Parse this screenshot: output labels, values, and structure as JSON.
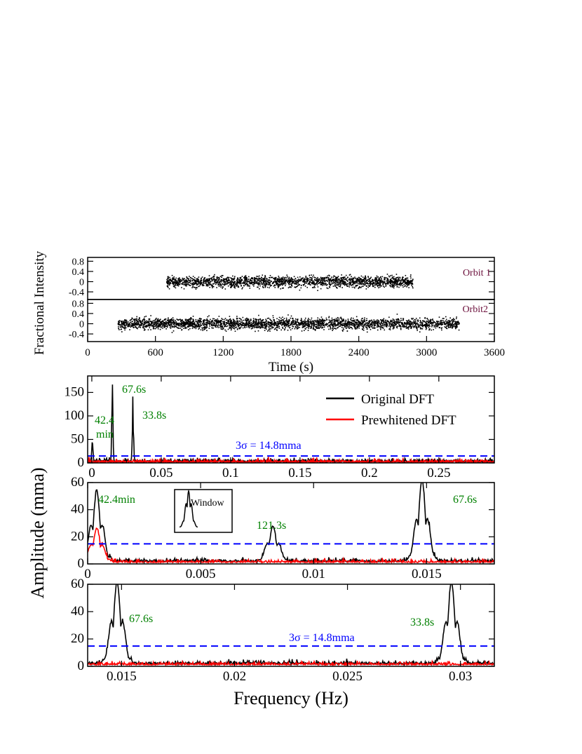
{
  "figure": {
    "ylabel_top": "Fractional Intensity",
    "xlabel_top": "Time (s)",
    "ylabel_bottom": "Amplitude (mma)",
    "xlabel_bottom": "Frequency (Hz)"
  },
  "colors": {
    "lightcurve": "#000000",
    "original": "#000000",
    "prewhitened": "#ff0000",
    "threshold": "#0000ff",
    "period_labels": "#008000",
    "orbit_labels": "#6b0f3b"
  },
  "chart_data": [
    {
      "type": "scatter",
      "panel": "orbit1",
      "label": "Orbit 1",
      "x_range": [
        700,
        2880
      ],
      "xlim": [
        0,
        3600
      ],
      "ylim": [
        -0.7,
        0.95
      ],
      "yticks": [
        "0.8",
        "0.4",
        "0",
        "-0.4"
      ],
      "ytick_values": [
        0.8,
        0.4,
        0,
        -0.4
      ],
      "scatter_sigma": 0.22
    },
    {
      "type": "scatter",
      "panel": "orbit2",
      "label": "Orbit2",
      "x_range": [
        270,
        3290
      ],
      "xlim": [
        0,
        3600
      ],
      "ylim": [
        -0.7,
        0.95
      ],
      "yticks": [
        "0.8",
        "0.4",
        "0",
        "-0.4"
      ],
      "ytick_values": [
        0.8,
        0.4,
        0,
        -0.4
      ],
      "xticks": [
        "0",
        "600",
        "1200",
        "1800",
        "2400",
        "3000",
        "3600"
      ],
      "xtick_values": [
        0,
        600,
        1200,
        1800,
        2400,
        3000,
        3600
      ],
      "scatter_sigma": 0.22
    },
    {
      "type": "line",
      "panel": "dft-full",
      "xlim": [
        -0.003,
        0.29
      ],
      "ylim": [
        0,
        185
      ],
      "xticks": [
        "0",
        "0.05",
        "0.1",
        "0.15",
        "0.2",
        "0.25"
      ],
      "xtick_values": [
        0,
        0.05,
        0.1,
        0.15,
        0.2,
        0.25
      ],
      "yticks": [
        "0",
        "50",
        "100",
        "150"
      ],
      "ytick_values": [
        0,
        50,
        100,
        150
      ],
      "series": [
        {
          "name": "Original DFT",
          "peaks": [
            [
              0.0004,
              50
            ],
            [
              0.0148,
              180
            ],
            [
              0.0296,
              138
            ]
          ]
        },
        {
          "name": "Prewhitened DFT",
          "peaks": []
        }
      ],
      "threshold": {
        "value": 14.8,
        "label": "3σ = 14.8mma"
      },
      "annotations": [
        {
          "text": "42.4",
          "x": 0.0004,
          "y": 50
        },
        {
          "text": "min",
          "x": 0.0004,
          "y": 50
        },
        {
          "text": "67.6s",
          "x": 0.0148,
          "y": 180
        },
        {
          "text": "33.8s",
          "x": 0.0296,
          "y": 138
        }
      ],
      "legend": {
        "position": "top-right"
      }
    },
    {
      "type": "line",
      "panel": "dft-low",
      "xlim": [
        0,
        0.018
      ],
      "ylim": [
        0,
        60
      ],
      "xticks": [
        "0",
        "0.005",
        "0.01",
        "0.015"
      ],
      "xtick_values": [
        0,
        0.005,
        0.01,
        0.015
      ],
      "yticks": [
        "0",
        "20",
        "40",
        "60"
      ],
      "ytick_values": [
        0,
        20,
        40,
        60
      ],
      "series": [
        {
          "name": "Original DFT",
          "peaks": [
            [
              0.0004,
              52
            ],
            [
              0.0082,
              26
            ],
            [
              0.0148,
              60
            ]
          ]
        },
        {
          "name": "Prewhitened DFT",
          "peaks": [
            [
              0.0004,
              25
            ]
          ]
        }
      ],
      "threshold": {
        "value": 14.8
      },
      "annotations": [
        {
          "text": "42.4min",
          "x": 0.0004,
          "y": 52
        },
        {
          "text": "121.3s",
          "x": 0.0082,
          "y": 26
        },
        {
          "text": "67.6s",
          "x": 0.0148,
          "y": 60
        }
      ],
      "inset": {
        "label": "Window"
      }
    },
    {
      "type": "line",
      "panel": "dft-mid",
      "xlim": [
        0.0135,
        0.0315
      ],
      "ylim": [
        0,
        60
      ],
      "xticks": [
        "0.015",
        "0.02",
        "0.025",
        "0.03"
      ],
      "xtick_values": [
        0.015,
        0.02,
        0.025,
        0.03
      ],
      "yticks": [
        "0",
        "20",
        "40",
        "60"
      ],
      "ytick_values": [
        0,
        20,
        40,
        60
      ],
      "series": [
        {
          "name": "Original DFT",
          "peaks": [
            [
              0.0148,
              60
            ],
            [
              0.0296,
              60
            ]
          ]
        },
        {
          "name": "Prewhitened DFT",
          "peaks": []
        }
      ],
      "threshold": {
        "value": 14.8,
        "label": "3σ = 14.8mma"
      },
      "annotations": [
        {
          "text": "67.6s",
          "x": 0.0148,
          "y": 60
        },
        {
          "text": "33.8s",
          "x": 0.0296,
          "y": 60
        }
      ]
    }
  ]
}
